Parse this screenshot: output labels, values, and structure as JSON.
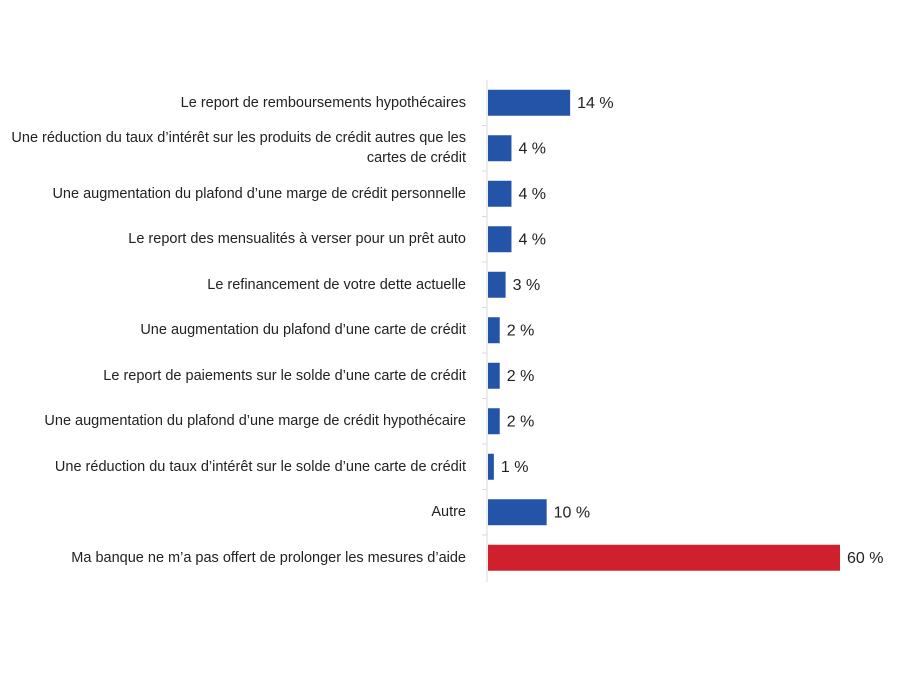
{
  "chart_data": {
    "type": "hbar",
    "categories": [
      "Le report de remboursements hypothécaires",
      "Une réduction du taux d’intérêt sur les produits de crédit autres que les cartes de crédit",
      "Une augmentation du plafond d’une marge de crédit personnelle",
      "Le report des mensualités à verser pour un prêt auto",
      "Le refinancement de votre dette actuelle",
      "Une augmentation du plafond d’une carte de crédit",
      "Le report de paiements sur le solde d’une carte de crédit",
      "Une augmentation du plafond d’une marge de crédit hypothécaire",
      "Une réduction du taux d’intérêt sur le solde d’une carte de crédit",
      "Autre",
      "Ma banque ne m’a pas offert de prolonger les mesures d’aide"
    ],
    "values": [
      14,
      4,
      4,
      4,
      3,
      2,
      2,
      2,
      1,
      10,
      60
    ],
    "value_labels": [
      "14 %",
      "4 %",
      "4 %",
      "4 %",
      "3 %",
      "2 %",
      "2 %",
      "2 %",
      "1 %",
      "10 %",
      "60 %"
    ],
    "colors": [
      "#2454a8",
      "#2454a8",
      "#2454a8",
      "#2454a8",
      "#2454a8",
      "#2454a8",
      "#2454a8",
      "#2454a8",
      "#2454a8",
      "#2454a8",
      "#d0202e"
    ]
  }
}
